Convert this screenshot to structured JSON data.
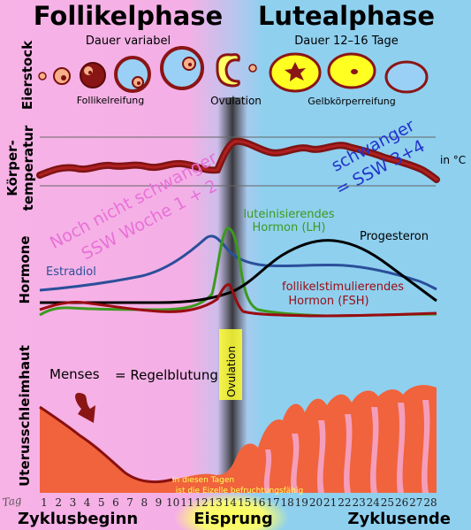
{
  "phases": {
    "follicular": {
      "title": "Follikelphase",
      "duration": "Dauer variabel"
    },
    "luteal": {
      "title": "Lutealphase",
      "duration": "Dauer 12–16 Tage"
    }
  },
  "row_labels": {
    "ovary": "Eierstock",
    "temperature_1": "Körper-",
    "temperature_2": "temperatur",
    "hormones": "Hormone",
    "endometrium": "Uterusschleimhaut"
  },
  "ovary": {
    "maturation": "Follikelreifung",
    "ovulation": "Ovulation",
    "corpus_luteum": "Gelbkörperreifung"
  },
  "temperature": {
    "unit": "in °C",
    "not_pregnant_1": "Noch nicht schwanger",
    "not_pregnant_2": "SSW Woche 1 + 2",
    "pregnant_1": "schwanger",
    "pregnant_2": "= SSW 3+4"
  },
  "hormones": {
    "lh_1": "luteinisierendes",
    "lh_2": "Hormon (LH)",
    "progesterone": "Progesteron",
    "estradiol": "Estradiol",
    "fsh_1": "follikelstimulierendes",
    "fsh_2": "Hormon (FSH)"
  },
  "endometrium": {
    "menses": "Menses",
    "menses_def": "= Regelblutung",
    "ovulation_vertical": "Ovulation",
    "fertile_1": "In diesen Tagen",
    "fertile_2": "ist die Eizelle befruchtungsfähig"
  },
  "axis": {
    "label": "Tag",
    "days": [
      "1",
      "2",
      "3",
      "4",
      "5",
      "6",
      "7",
      "8",
      "9",
      "10",
      "11",
      "12",
      "13",
      "14",
      "15",
      "16",
      "17",
      "18",
      "19",
      "20",
      "21",
      "22",
      "23",
      "24",
      "25",
      "26",
      "27",
      "28"
    ]
  },
  "footer": {
    "start": "Zyklusbeginn",
    "ovulation": "Eisprung",
    "end": "Zyklusende"
  },
  "colors": {
    "follicular_bg": "#f7b2e6",
    "luteal_bg": "#8fd0ef",
    "ovulation_glow": "#ffff66",
    "estradiol": "#2b4f9a",
    "lh": "#3c9a1e",
    "progesterone": "#000000",
    "fsh": "#9a0c12",
    "temperature": "#8b1a1a",
    "endometrium": "#f0633c"
  }
}
